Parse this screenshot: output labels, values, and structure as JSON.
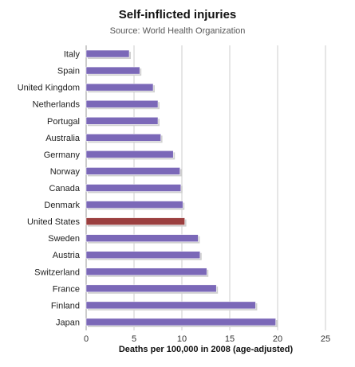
{
  "chart_data": {
    "type": "bar",
    "orientation": "horizontal",
    "title": "Self-inflicted injuries",
    "subtitle": "Source: World Health Organization",
    "xlabel": "Deaths per 100,000 in 2008 (age-adjusted)",
    "ylabel": "",
    "xlim": [
      0,
      25
    ],
    "ticks": [
      "0",
      "5",
      "10",
      "15",
      "20",
      "25"
    ],
    "grid": true,
    "categories": [
      "Italy",
      "Spain",
      "United Kingdom",
      "Netherlands",
      "Portugal",
      "Australia",
      "Germany",
      "Norway",
      "Canada",
      "Denmark",
      "United States",
      "Sweden",
      "Austria",
      "Switzerland",
      "France",
      "Finland",
      "Japan"
    ],
    "values": [
      4.5,
      5.6,
      7.0,
      7.5,
      7.5,
      7.8,
      9.1,
      9.8,
      9.9,
      10.1,
      10.3,
      11.7,
      11.9,
      12.6,
      13.6,
      17.7,
      19.8
    ],
    "highlight": "United States",
    "colors": {
      "bar": "#7b68b8",
      "highlight": "#9b3f3f",
      "grid": "#cccccc"
    }
  }
}
